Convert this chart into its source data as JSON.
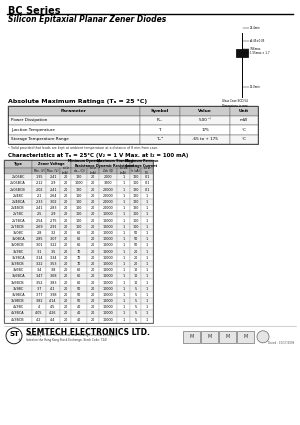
{
  "title": "BC Series",
  "subtitle": "Silicon Epitaxial Planar Zener Diodes",
  "abs_max_title": "Absolute Maximum Ratings (Tₐ = 25 °C)",
  "abs_max_headers": [
    "Parameter",
    "Symbol",
    "Value",
    "Unit"
  ],
  "abs_max_rows": [
    [
      "Power Dissipation",
      "Pₐₓ",
      "500 ¹⁾",
      "mW"
    ],
    [
      "Junction Temperature",
      "Tⱼ",
      "175",
      "°C"
    ],
    [
      "Storage Temperature Range",
      "Tₛₜᴳ",
      "-65 to + 175",
      "°C"
    ]
  ],
  "abs_max_note": "¹⁾ Valid provided that leads are kept at ambient temperature at a distance of 8 mm from case.",
  "char_title": "Characteristics at Tₐ = 25°C (V₂ = 1 V Max. at I₂ = 100 mA)",
  "char_rows": [
    [
      "2V05BC",
      "1.95",
      "2.41",
      "20",
      "120",
      "20",
      "2000",
      "1",
      "120",
      "0.1"
    ],
    [
      "2V05BCA",
      "2.12",
      "2.9",
      "20",
      "1000",
      "20",
      "3000",
      "1",
      "100",
      "0.1"
    ],
    [
      "2V05BCB",
      "2.02",
      "2.41",
      "20",
      "120",
      "20",
      "20000",
      "1",
      "120",
      "0.1"
    ],
    [
      "2V4BC",
      "2.1",
      "2.64",
      "20",
      "100",
      "20",
      "20000",
      "1",
      "120",
      "1"
    ],
    [
      "2V4BCA",
      "2.33",
      "3.02",
      "20",
      "100",
      "20",
      "20000",
      "1",
      "120",
      "1"
    ],
    [
      "2V4BCB",
      "2.41",
      "2.83",
      "20",
      "100",
      "20",
      "20000",
      "1",
      "120",
      "1"
    ],
    [
      "2V7BC",
      "2.5",
      "2.9",
      "20",
      "100",
      "20",
      "10000",
      "1",
      "100",
      "1"
    ],
    [
      "2V7BCA",
      "2.54",
      "2.75",
      "20",
      "100",
      "20",
      "10000",
      "1",
      "100",
      "1"
    ],
    [
      "2V7BCB",
      "2.69",
      "2.91",
      "20",
      "100",
      "20",
      "10000",
      "1",
      "100",
      "1"
    ],
    [
      "3V0BC",
      "2.8",
      "3.2",
      "20",
      "60",
      "20",
      "10000",
      "1",
      "50",
      "1"
    ],
    [
      "3V0BCA",
      "2.85",
      "3.07",
      "20",
      "60",
      "20",
      "10000",
      "1",
      "50",
      "1"
    ],
    [
      "3V0BCB",
      "3.01",
      "3.22",
      "20",
      "60",
      "20",
      "10000",
      "1",
      "50",
      "1"
    ],
    [
      "3V3BC",
      "3.1",
      "3.5",
      "20",
      "70",
      "20",
      "10000",
      "1",
      "20",
      "1"
    ],
    [
      "3V3BCA",
      "3.14",
      "3.34",
      "20",
      "70",
      "20",
      "10000",
      "1",
      "20",
      "1"
    ],
    [
      "3V3BCB",
      "3.22",
      "3.53",
      "20",
      "70",
      "20",
      "10000",
      "1",
      "20",
      "1"
    ],
    [
      "3V6BC",
      "3.4",
      "3.8",
      "20",
      "60",
      "20",
      "10000",
      "1",
      "10",
      "1"
    ],
    [
      "3V6BCA",
      "3.47",
      "3.68",
      "20",
      "60",
      "20",
      "10000",
      "1",
      "10",
      "1"
    ],
    [
      "3V6BCB",
      "3.52",
      "3.83",
      "20",
      "60",
      "20",
      "10000",
      "1",
      "10",
      "1"
    ],
    [
      "3V9BC",
      "3.7",
      "4.1",
      "20",
      "50",
      "20",
      "10000",
      "1",
      "5",
      "1"
    ],
    [
      "3V9BCA",
      "3.77",
      "3.98",
      "20",
      "50",
      "20",
      "10000",
      "1",
      "5",
      "1"
    ],
    [
      "3V9BCB",
      "3.82",
      "4.14",
      "20",
      "50",
      "20",
      "10000",
      "1",
      "5",
      "1"
    ],
    [
      "4V3BC",
      "4",
      "4.5",
      "20",
      "40",
      "20",
      "10000",
      "1",
      "5",
      "1"
    ],
    [
      "4V3BCA",
      "4.05",
      "4.26",
      "20",
      "40",
      "20",
      "10000",
      "1",
      "5",
      "1"
    ],
    [
      "4V3BCB",
      "4.2",
      "4.4",
      "20",
      "40",
      "20",
      "10000",
      "1",
      "5",
      "1"
    ]
  ],
  "footer_company": "SEMTECH ELECTRONICS LTD.",
  "footer_sub": "(Subsidiary of Sino Tech International Holdings Limited, a company\nlisted on the Hong Kong Stock Exchange, Stock Code: 724)",
  "date": "Dated : 10/17/2008",
  "bg_color": "#ffffff"
}
